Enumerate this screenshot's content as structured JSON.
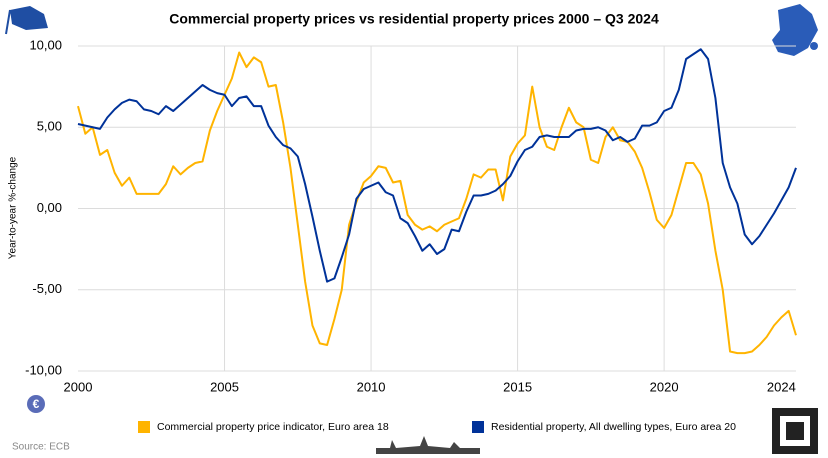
{
  "chart_data": {
    "type": "line",
    "title": "Commercial property prices vs residential property prices 2000 – Q3 2024",
    "y_label": "Year-to-year %-change",
    "source": "Source: ECB",
    "x": [
      2000,
      2000.25,
      2000.5,
      2000.75,
      2001,
      2001.25,
      2001.5,
      2001.75,
      2002,
      2002.25,
      2002.5,
      2002.75,
      2003,
      2003.25,
      2003.5,
      2003.75,
      2004,
      2004.25,
      2004.5,
      2004.75,
      2005,
      2005.25,
      2005.5,
      2005.75,
      2006,
      2006.25,
      2006.5,
      2006.75,
      2007,
      2007.25,
      2007.5,
      2007.75,
      2008,
      2008.25,
      2008.5,
      2008.75,
      2009,
      2009.25,
      2009.5,
      2009.75,
      2010,
      2010.25,
      2010.5,
      2010.75,
      2011,
      2011.25,
      2011.5,
      2011.75,
      2012,
      2012.25,
      2012.5,
      2012.75,
      2013,
      2013.25,
      2013.5,
      2013.75,
      2014,
      2014.25,
      2014.5,
      2014.75,
      2015,
      2015.25,
      2015.5,
      2015.75,
      2016,
      2016.25,
      2016.5,
      2016.75,
      2017,
      2017.25,
      2017.5,
      2017.75,
      2018,
      2018.25,
      2018.5,
      2018.75,
      2019,
      2019.25,
      2019.5,
      2019.75,
      2020,
      2020.25,
      2020.5,
      2020.75,
      2021,
      2021.25,
      2021.5,
      2021.75,
      2022,
      2022.25,
      2022.5,
      2022.75,
      2023,
      2023.25,
      2023.5,
      2023.75,
      2024,
      2024.25,
      2024.5
    ],
    "series": [
      {
        "name": "Commercial property price indicator, Euro area 18",
        "color": "#ffb400",
        "values": [
          6.3,
          4.6,
          5.0,
          3.3,
          3.6,
          2.2,
          1.4,
          1.9,
          0.9,
          0.9,
          0.9,
          0.9,
          1.5,
          2.6,
          2.1,
          2.5,
          2.8,
          2.9,
          4.8,
          6.0,
          7.0,
          8.0,
          9.6,
          8.7,
          9.3,
          9.0,
          7.5,
          7.6,
          5.3,
          2.5,
          -1.0,
          -4.5,
          -7.2,
          -8.3,
          -8.4,
          -6.8,
          -5.0,
          -1.0,
          0.4,
          1.6,
          2.0,
          2.6,
          2.5,
          1.6,
          1.7,
          -0.4,
          -1.0,
          -1.3,
          -1.1,
          -1.4,
          -1.0,
          -0.8,
          -0.6,
          0.6,
          2.1,
          1.9,
          2.4,
          2.4,
          0.5,
          3.2,
          4.0,
          4.5,
          7.5,
          5.0,
          3.8,
          3.6,
          5.0,
          6.2,
          5.3,
          5.0,
          3.0,
          2.8,
          4.4,
          5.0,
          4.2,
          4.1,
          3.5,
          2.5,
          1.0,
          -0.7,
          -1.2,
          -0.4,
          1.2,
          2.8,
          2.8,
          2.1,
          0.3,
          -2.6,
          -5.0,
          -8.8,
          -8.9,
          -8.9,
          -8.8,
          -8.4,
          -7.9,
          -7.2,
          -6.7,
          -6.3,
          -7.8
        ]
      },
      {
        "name": "Residential property, All dwelling types, Euro area 20",
        "color": "#003299",
        "values": [
          5.2,
          5.1,
          5.0,
          4.9,
          5.6,
          6.1,
          6.5,
          6.7,
          6.6,
          6.1,
          6.0,
          5.8,
          6.3,
          6.0,
          6.4,
          6.8,
          7.2,
          7.6,
          7.3,
          7.1,
          7.0,
          6.3,
          6.8,
          6.9,
          6.3,
          6.3,
          5.1,
          4.4,
          3.9,
          3.7,
          3.2,
          1.5,
          -0.5,
          -2.6,
          -4.5,
          -4.3,
          -3.0,
          -1.6,
          0.6,
          1.2,
          1.4,
          1.6,
          1.0,
          0.8,
          -0.6,
          -0.9,
          -1.7,
          -2.6,
          -2.2,
          -2.8,
          -2.5,
          -1.3,
          -1.4,
          -0.2,
          0.8,
          0.8,
          0.9,
          1.1,
          1.5,
          2.0,
          2.9,
          3.6,
          3.8,
          4.4,
          4.5,
          4.4,
          4.4,
          4.4,
          4.8,
          4.9,
          4.9,
          5.0,
          4.8,
          4.2,
          4.4,
          4.1,
          4.3,
          5.1,
          5.1,
          5.3,
          6.0,
          6.2,
          7.3,
          9.2,
          9.5,
          9.8,
          9.2,
          6.8,
          2.8,
          1.3,
          0.3,
          -1.6,
          -2.2,
          -1.7,
          -1.0,
          -0.3,
          0.5,
          1.3,
          2.5
        ]
      }
    ],
    "xlim": [
      2000,
      2024.5
    ],
    "xticks": [
      2000,
      2005,
      2010,
      2015,
      2020,
      2024
    ],
    "ylim": [
      -10,
      10
    ],
    "yticks": [
      {
        "value": 10,
        "label": "10,00"
      },
      {
        "value": 5,
        "label": "5,00"
      },
      {
        "value": 0,
        "label": "0,00"
      },
      {
        "value": -5,
        "label": "-5,00"
      },
      {
        "value": -10,
        "label": "-10,00"
      }
    ],
    "grid": true
  }
}
